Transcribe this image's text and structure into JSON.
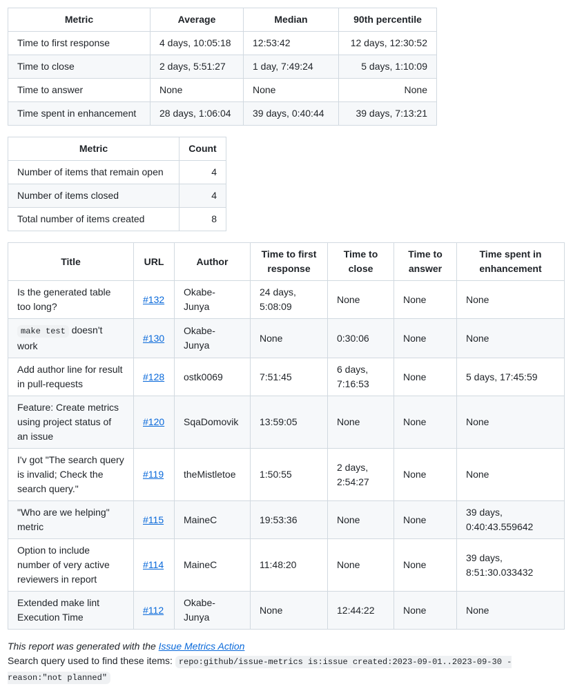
{
  "metrics_table": {
    "headers": [
      "Metric",
      "Average",
      "Median",
      "90th percentile"
    ],
    "rows": [
      [
        "Time to first response",
        "4 days, 10:05:18",
        "12:53:42",
        "12 days, 12:30:52"
      ],
      [
        "Time to close",
        "2 days, 5:51:27",
        "1 day, 7:49:24",
        "5 days, 1:10:09"
      ],
      [
        "Time to answer",
        "None",
        "None",
        "None"
      ],
      [
        "Time spent in enhancement",
        "28 days, 1:06:04",
        "39 days, 0:40:44",
        "39 days, 7:13:21"
      ]
    ]
  },
  "count_table": {
    "headers": [
      "Metric",
      "Count"
    ],
    "rows": [
      [
        "Number of items that remain open",
        "4"
      ],
      [
        "Number of items closed",
        "4"
      ],
      [
        "Total number of items created",
        "8"
      ]
    ]
  },
  "items_table": {
    "headers": [
      "Title",
      "URL",
      "Author",
      "Time to first response",
      "Time to close",
      "Time to answer",
      "Time spent in enhancement"
    ],
    "rows": [
      {
        "title": "Is the generated table too long?",
        "code": "",
        "url": "#132",
        "author": "Okabe-Junya",
        "first": "24 days, 5:08:09",
        "close": "None",
        "answer": "None",
        "enh": "None"
      },
      {
        "title": " doesn't work",
        "code": "make test",
        "url": "#130",
        "author": "Okabe-Junya",
        "first": "None",
        "close": "0:30:06",
        "answer": "None",
        "enh": "None"
      },
      {
        "title": "Add author line for result in pull-requests",
        "code": "",
        "url": "#128",
        "author": "ostk0069",
        "first": "7:51:45",
        "close": "6 days, 7:16:53",
        "answer": "None",
        "enh": "5 days, 17:45:59"
      },
      {
        "title": "Feature: Create metrics using project status of an issue",
        "code": "",
        "url": "#120",
        "author": "SqaDomovik",
        "first": "13:59:05",
        "close": "None",
        "answer": "None",
        "enh": "None"
      },
      {
        "title": "I'v got \"The search query is invalid; Check the search query.\"",
        "code": "",
        "url": "#119",
        "author": "theMistletoe",
        "first": "1:50:55",
        "close": "2 days, 2:54:27",
        "answer": "None",
        "enh": "None"
      },
      {
        "title": "\"Who are we helping\" metric",
        "code": "",
        "url": "#115",
        "author": "MaineC",
        "first": "19:53:36",
        "close": "None",
        "answer": "None",
        "enh": "39 days, 0:40:43.559642"
      },
      {
        "title": "Option to include number of very active reviewers in report",
        "code": "",
        "url": "#114",
        "author": "MaineC",
        "first": "11:48:20",
        "close": "None",
        "answer": "None",
        "enh": "39 days, 8:51:30.033432"
      },
      {
        "title": "Extended make lint Execution Time",
        "code": "",
        "url": "#112",
        "author": "Okabe-Junya",
        "first": "None",
        "close": "12:44:22",
        "answer": "None",
        "enh": "None"
      }
    ]
  },
  "footer": {
    "generated_prefix": "This report was generated with the ",
    "generated_link": "Issue Metrics Action",
    "query_label": "Search query used to find these items: ",
    "query": "repo:github/issue-metrics is:issue created:2023-09-01..2023-09-30 -reason:\"not planned\""
  }
}
